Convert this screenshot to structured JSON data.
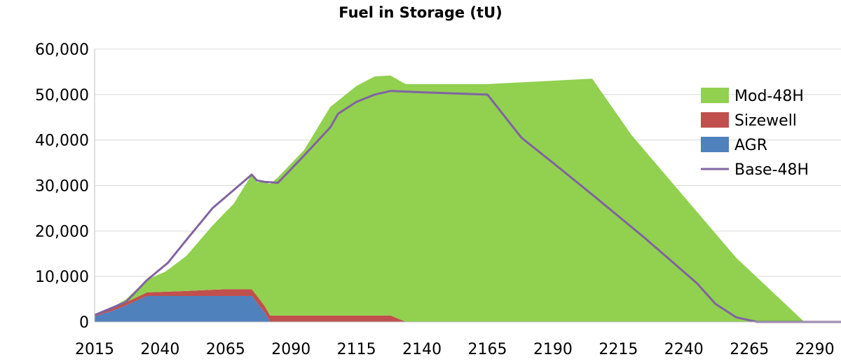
{
  "chart_data": {
    "type": "area",
    "title": "Fuel in Storage (tU)",
    "xlabel": "",
    "ylabel": "",
    "xlim": [
      2015,
      2300
    ],
    "ylim": [
      0,
      60000
    ],
    "x_ticks": [
      2015,
      2040,
      2065,
      2090,
      2115,
      2140,
      2165,
      2190,
      2215,
      2240,
      2265,
      2290
    ],
    "y_ticks": [
      0,
      10000,
      20000,
      30000,
      40000,
      50000,
      60000
    ],
    "y_tick_labels": [
      "0",
      "10,000",
      "20,000",
      "30,000",
      "40,000",
      "50,000",
      "60,000"
    ],
    "legend_position": "right",
    "grid": "horizontal",
    "series": [
      {
        "name": "AGR",
        "kind": "stacked-area",
        "color": "#4f81bd",
        "points": [
          [
            2015,
            1200
          ],
          [
            2022,
            2500
          ],
          [
            2027,
            3600
          ],
          [
            2035,
            5700
          ],
          [
            2050,
            5700
          ],
          [
            2065,
            5700
          ],
          [
            2075,
            5700
          ],
          [
            2080,
            2000
          ],
          [
            2082,
            0
          ],
          [
            2300,
            0
          ]
        ]
      },
      {
        "name": "Sizewell",
        "kind": "stacked-area",
        "color": "#c0504d",
        "points": [
          [
            2015,
            300
          ],
          [
            2022,
            500
          ],
          [
            2027,
            700
          ],
          [
            2035,
            800
          ],
          [
            2050,
            1100
          ],
          [
            2065,
            1500
          ],
          [
            2075,
            1500
          ],
          [
            2078,
            1500
          ],
          [
            2082,
            1400
          ],
          [
            2100,
            1400
          ],
          [
            2120,
            1400
          ],
          [
            2128,
            1400
          ],
          [
            2131,
            700
          ],
          [
            2134,
            0
          ],
          [
            2300,
            0
          ]
        ]
      },
      {
        "name": "Mod-48H",
        "kind": "stacked-area",
        "color": "#92d050",
        "points": [
          [
            2015,
            0
          ],
          [
            2022,
            300
          ],
          [
            2027,
            700
          ],
          [
            2035,
            2800
          ],
          [
            2042,
            4400
          ],
          [
            2050,
            7700
          ],
          [
            2060,
            14100
          ],
          [
            2068,
            18700
          ],
          [
            2075,
            25200
          ],
          [
            2077,
            25000
          ],
          [
            2082,
            28900
          ],
          [
            2085,
            30400
          ],
          [
            2095,
            36400
          ],
          [
            2105,
            45900
          ],
          [
            2115,
            50500
          ],
          [
            2122,
            52600
          ],
          [
            2128,
            52800
          ],
          [
            2133,
            52300
          ],
          [
            2165,
            52300
          ],
          [
            2205,
            53500
          ],
          [
            2220,
            41100
          ],
          [
            2240,
            27600
          ],
          [
            2260,
            14100
          ],
          [
            2286,
            0
          ],
          [
            2300,
            0
          ]
        ]
      },
      {
        "name": "Base-48H",
        "kind": "line",
        "color": "#8064a2",
        "points": [
          [
            2015,
            1500
          ],
          [
            2027,
            4400
          ],
          [
            2035,
            9200
          ],
          [
            2043,
            13000
          ],
          [
            2050,
            18000
          ],
          [
            2060,
            25000
          ],
          [
            2075,
            32400
          ],
          [
            2077,
            31100
          ],
          [
            2080,
            30800
          ],
          [
            2085,
            30600
          ],
          [
            2095,
            36600
          ],
          [
            2105,
            42800
          ],
          [
            2108,
            45800
          ],
          [
            2115,
            48400
          ],
          [
            2122,
            50000
          ],
          [
            2128,
            50800
          ],
          [
            2140,
            50500
          ],
          [
            2165,
            50000
          ],
          [
            2178,
            40500
          ],
          [
            2190,
            35000
          ],
          [
            2205,
            28000
          ],
          [
            2225,
            18500
          ],
          [
            2245,
            8500
          ],
          [
            2252,
            4000
          ],
          [
            2260,
            1000
          ],
          [
            2268,
            0
          ],
          [
            2300,
            0
          ]
        ]
      }
    ]
  }
}
